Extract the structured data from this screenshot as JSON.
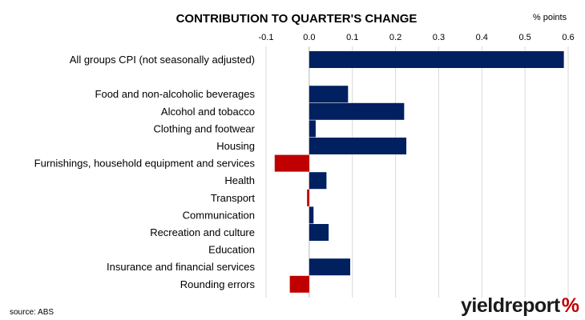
{
  "chart_data": {
    "type": "bar",
    "orientation": "horizontal",
    "title": "CONTRIBUTION TO QUARTER'S CHANGE",
    "unit_label": "% points",
    "xlim": [
      -0.1,
      0.6
    ],
    "ticks": [
      -0.1,
      0.0,
      0.1,
      0.2,
      0.3,
      0.4,
      0.5,
      0.6
    ],
    "tick_labels": [
      "-0.1",
      "0.0",
      "0.1",
      "0.2",
      "0.3",
      "0.4",
      "0.5",
      "0.6"
    ],
    "grid": true,
    "categories": [
      "All groups CPI (not seasonally adjusted)",
      "",
      "Food and non-alcoholic beverages",
      "Alcohol and tobacco",
      "Clothing and footwear",
      "Housing",
      "Furnishings, household equipment and services",
      "Health",
      "Transport",
      "Communication",
      "Recreation and culture",
      "Education",
      "Insurance and financial services",
      "Rounding errors"
    ],
    "values": [
      0.59,
      null,
      0.09,
      0.22,
      0.015,
      0.225,
      -0.08,
      0.04,
      -0.005,
      0.01,
      0.045,
      0.0,
      0.095,
      -0.045
    ],
    "colors": {
      "positive": "#002060",
      "negative": "#C00000"
    }
  },
  "source": "source: ABS",
  "logo": {
    "text": "yieldreport",
    "symbol": "%",
    "accent_red": "#C00000",
    "accent_green": "#3A9A3A"
  }
}
